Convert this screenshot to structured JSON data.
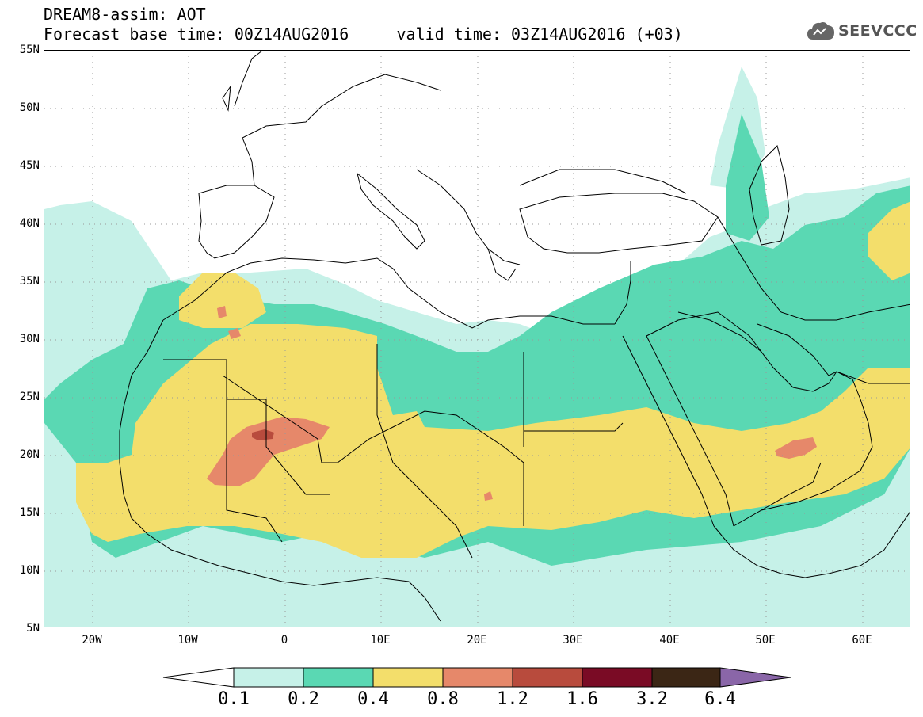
{
  "header": {
    "title_line1": "DREAM8-assim: AOT",
    "title_line2": "Forecast base time: 00Z14AUG2016     valid time: 03Z14AUG2016 (+03)",
    "logo_text": "SEEVCCC"
  },
  "map": {
    "extent": {
      "lon_min": -25,
      "lon_max": 65,
      "lat_min": 5,
      "lat_max": 55
    },
    "lat_labels": [
      "55N",
      "50N",
      "45N",
      "40N",
      "35N",
      "30N",
      "25N",
      "20N",
      "15N",
      "10N",
      "5N"
    ],
    "lon_labels": [
      "20W",
      "10W",
      "0",
      "10E",
      "20E",
      "30E",
      "40E",
      "50E",
      "60E"
    ],
    "gridlines": "dotted"
  },
  "colorbar": {
    "levels": [
      "0.1",
      "0.2",
      "0.4",
      "0.8",
      "1.2",
      "1.6",
      "3.2",
      "6.4"
    ],
    "colors": [
      "#c6f1e8",
      "#5ad8b3",
      "#f3de6b",
      "#e6886a",
      "#b84b3d",
      "#7a0b25",
      "#3b2615"
    ],
    "under_color": "#ffffff",
    "over_color": "#8a66a8"
  }
}
